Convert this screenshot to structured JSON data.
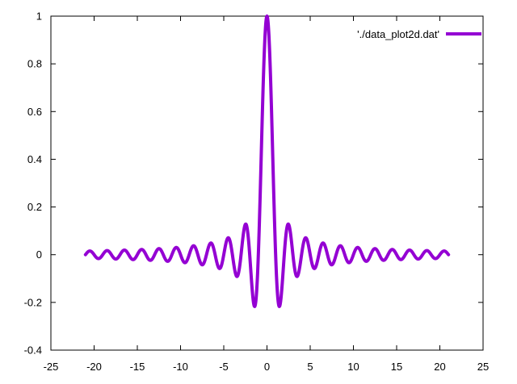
{
  "chart_data": {
    "type": "line",
    "xlim": [
      -25,
      25
    ],
    "ylim": [
      -0.4,
      1
    ],
    "x_ticks": [
      -25,
      -20,
      -15,
      -10,
      -5,
      0,
      5,
      10,
      15,
      20,
      25
    ],
    "y_ticks": [
      -0.4,
      -0.2,
      0,
      0.2,
      0.4,
      0.6,
      0.8,
      1
    ],
    "x_tick_labels": [
      "-25",
      "-20",
      "-15",
      "-10",
      "-5",
      "0",
      "5",
      "10",
      "15",
      "20",
      "25"
    ],
    "y_tick_labels": [
      "-0.4",
      "-0.2",
      "0",
      "0.2",
      "0.4",
      "0.6",
      "0.8",
      "1"
    ],
    "grid": false,
    "legend_position": "top-right",
    "series": [
      {
        "name": "'./data_plot2d.dat'",
        "color": "#9400d3",
        "function": "sin(x*pi)/(x*pi)",
        "x_range": [
          -21,
          21
        ],
        "points": [
          [
            -21,
            -0.01
          ],
          [
            -20.5,
            0.015
          ],
          [
            -20,
            0
          ],
          [
            -19.5,
            -0.016
          ],
          [
            -18.5,
            -0.017
          ],
          [
            -17.5,
            -0.018
          ],
          [
            -16.5,
            -0.019
          ],
          [
            -15.5,
            -0.021
          ],
          [
            -14.5,
            -0.022
          ],
          [
            -13.5,
            -0.024
          ],
          [
            -12.5,
            -0.025
          ],
          [
            -11.5,
            -0.028
          ],
          [
            -10.5,
            -0.03
          ],
          [
            -9.5,
            -0.034
          ],
          [
            -8.5,
            -0.037
          ],
          [
            -7.5,
            -0.042
          ],
          [
            -6.5,
            -0.049
          ],
          [
            -5.5,
            -0.058
          ],
          [
            -4.5,
            -0.071
          ],
          [
            -3.5,
            -0.091
          ],
          [
            -2.5,
            0.127
          ],
          [
            -1.5,
            -0.212
          ],
          [
            -1,
            0
          ],
          [
            -0.5,
            0.637
          ],
          [
            0,
            1
          ],
          [
            0.5,
            0.637
          ],
          [
            1,
            0
          ],
          [
            1.5,
            -0.212
          ],
          [
            2.5,
            0.127
          ],
          [
            3.5,
            -0.091
          ],
          [
            4.5,
            0.071
          ],
          [
            5.5,
            -0.058
          ],
          [
            6.5,
            0.049
          ],
          [
            7.5,
            -0.042
          ],
          [
            8.5,
            0.037
          ],
          [
            9.5,
            -0.034
          ],
          [
            10.5,
            0.03
          ],
          [
            11.5,
            -0.028
          ],
          [
            12.5,
            0.025
          ],
          [
            13.5,
            -0.024
          ],
          [
            14.5,
            0.022
          ],
          [
            15.5,
            -0.021
          ],
          [
            16.5,
            0.019
          ],
          [
            17.5,
            -0.018
          ],
          [
            18.5,
            0.017
          ],
          [
            19.5,
            -0.016
          ],
          [
            20,
            0
          ],
          [
            20.5,
            0.015
          ],
          [
            21,
            -0.01
          ]
        ]
      }
    ]
  }
}
